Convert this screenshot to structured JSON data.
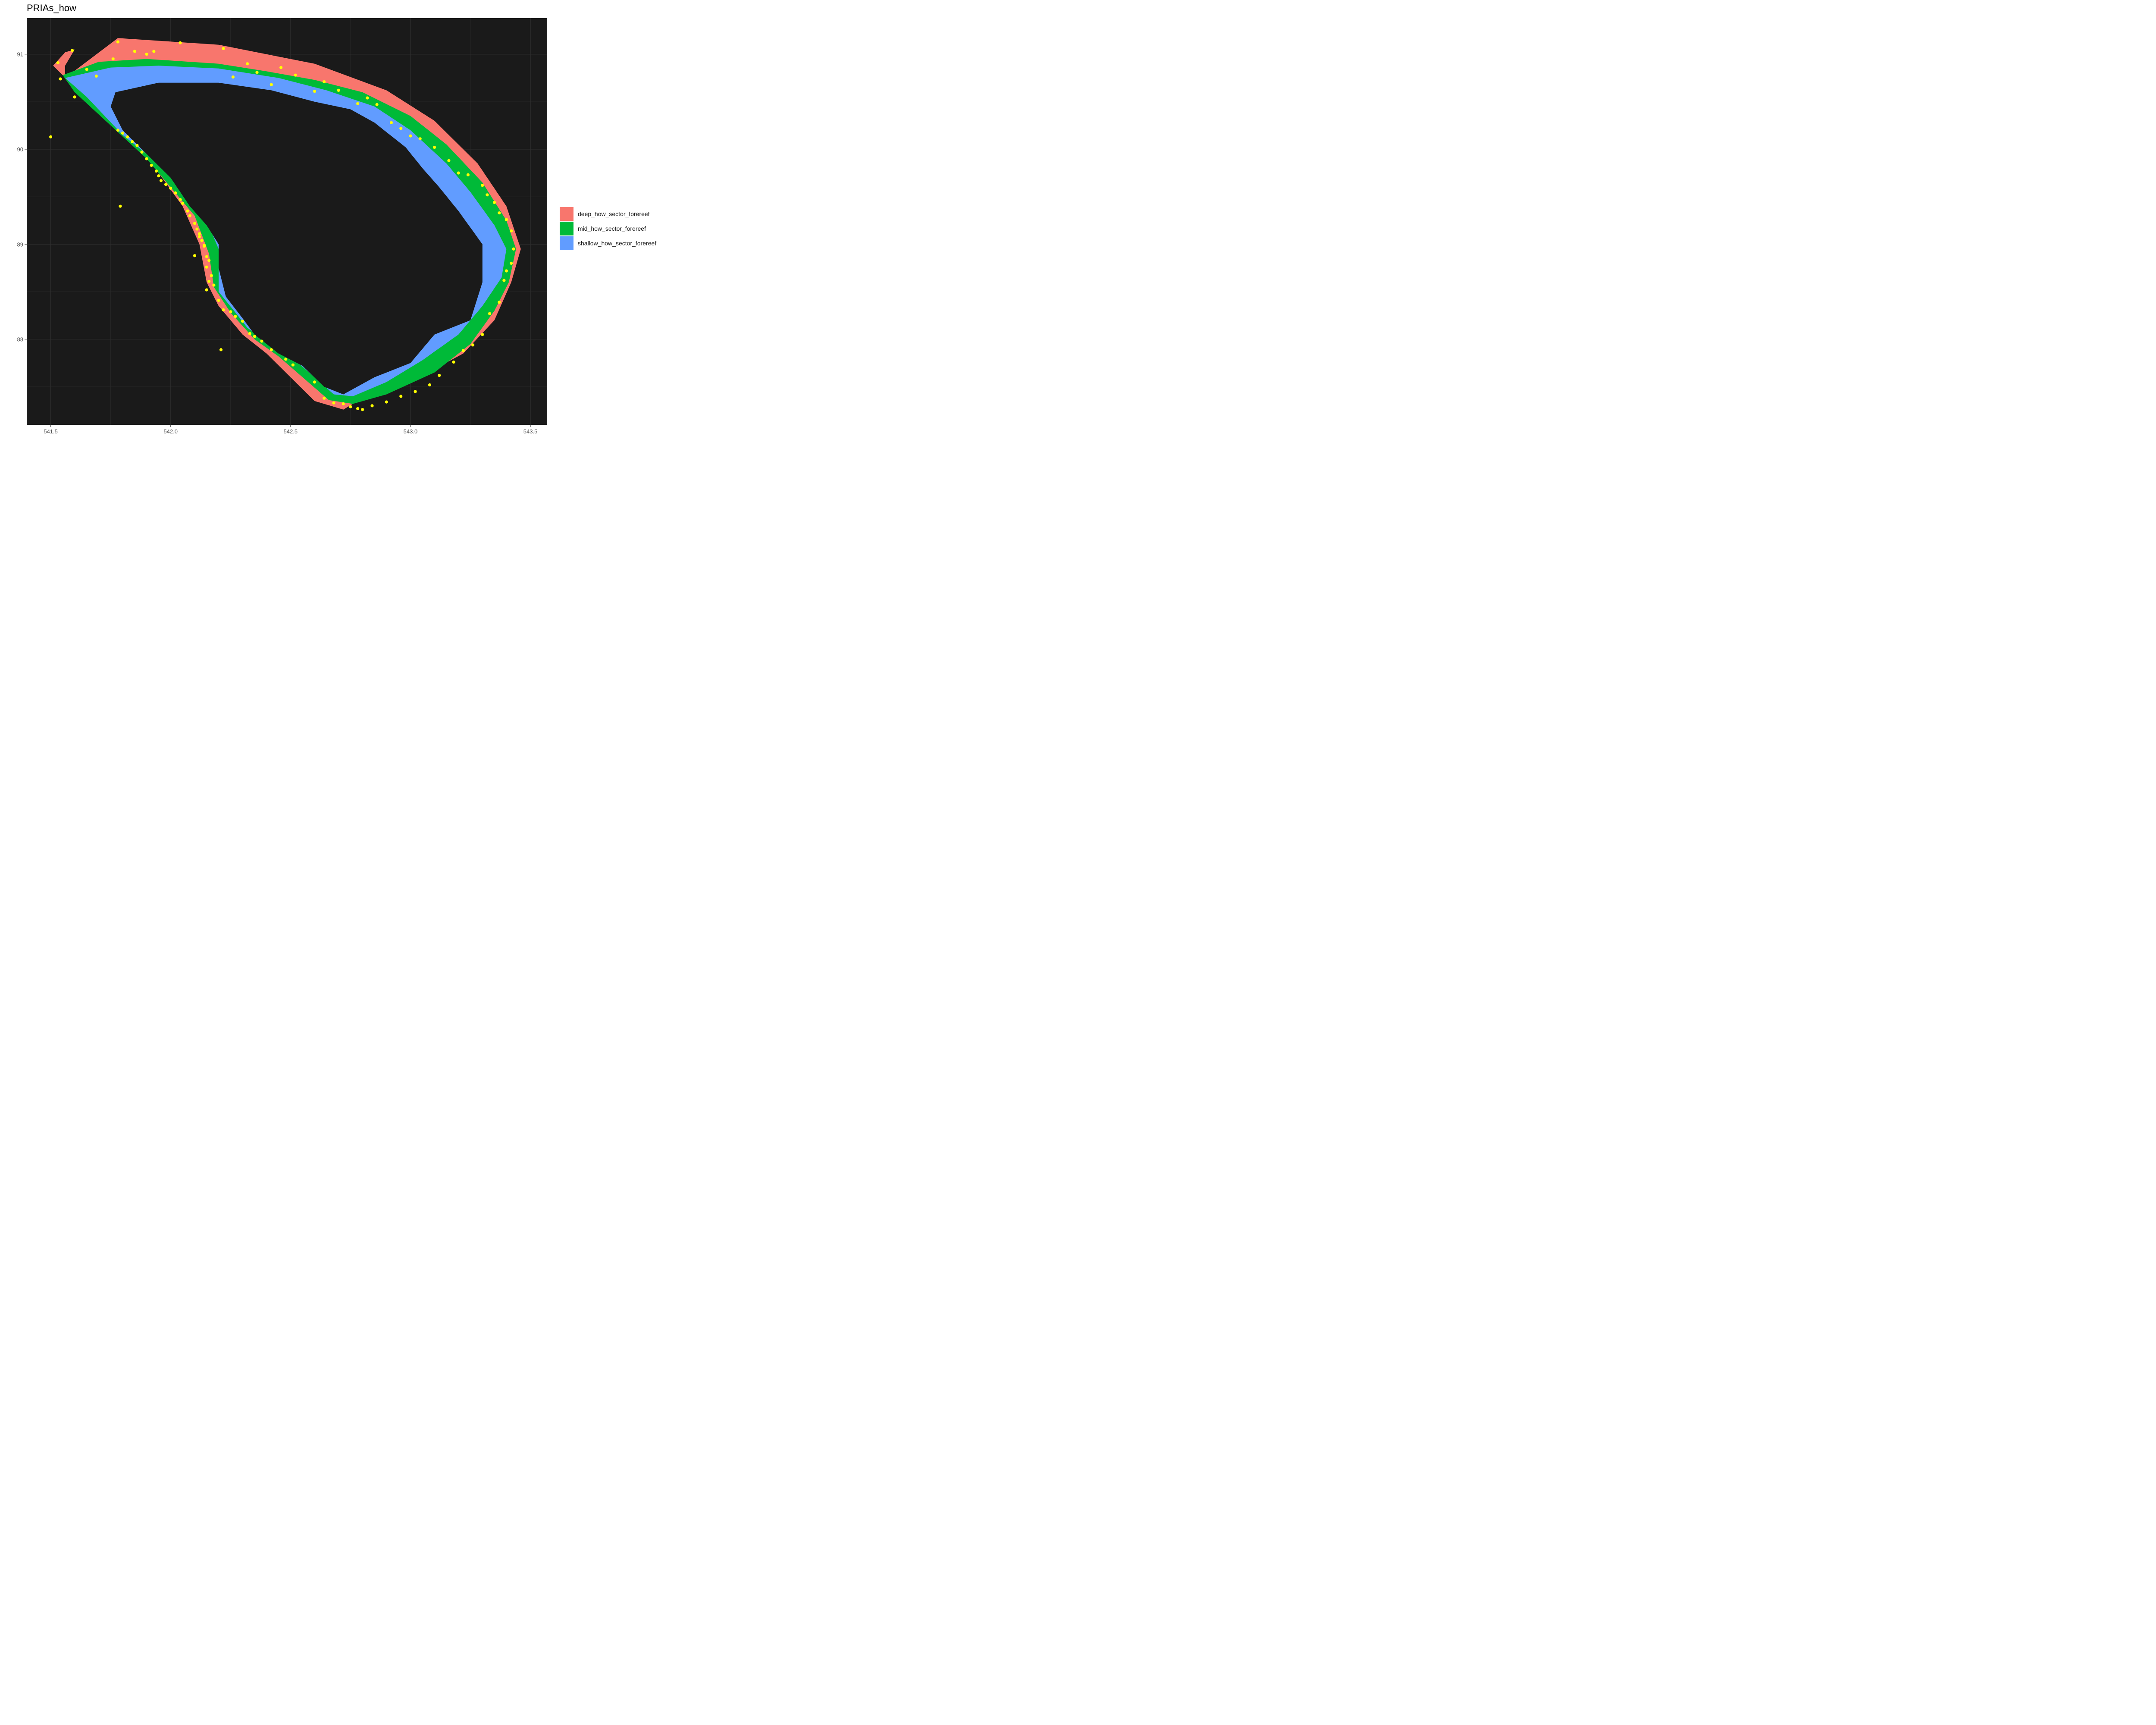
{
  "title": "PRIAs_how",
  "colors": {
    "panel_background": "#1a1a1a",
    "grid": "#2e2e2e",
    "deep": "#F8766D",
    "mid": "#00BA38",
    "shallow": "#619CFF",
    "points": "#FFFF00"
  },
  "legend": [
    {
      "label": "deep_how_sector_forereef",
      "color": "#F8766D"
    },
    {
      "label": "mid_how_sector_forereef",
      "color": "#00BA38"
    },
    {
      "label": "shallow_how_sector_forereef",
      "color": "#619CFF"
    }
  ],
  "chart_data": {
    "type": "scatter",
    "title": "PRIAs_how",
    "xlabel": "",
    "ylabel": "",
    "xlim": [
      541.4,
      543.57
    ],
    "ylim": [
      87.1,
      91.38
    ],
    "x_ticks": [
      541.5,
      542.0,
      542.5,
      543.0,
      543.5
    ],
    "x_tick_labels": [
      "541.5",
      "542.0",
      "542.5",
      "543.0",
      "543.5"
    ],
    "y_ticks": [
      88,
      89,
      90,
      91
    ],
    "y_tick_labels": [
      "88",
      "89",
      "90",
      "91"
    ],
    "grid": true,
    "legend_position": "right",
    "layers": [
      {
        "name": "deep_how_sector_forereef",
        "geometry": "raster",
        "color": "#F8766D"
      },
      {
        "name": "mid_how_sector_forereef",
        "geometry": "raster",
        "color": "#00BA38"
      },
      {
        "name": "shallow_how_sector_forereef",
        "geometry": "raster",
        "color": "#619CFF"
      }
    ],
    "points": [
      [
        541.5,
        90.13
      ],
      [
        541.53,
        90.91
      ],
      [
        541.54,
        90.74
      ],
      [
        541.59,
        91.04
      ],
      [
        541.6,
        90.55
      ],
      [
        541.65,
        90.84
      ],
      [
        541.69,
        90.77
      ],
      [
        541.76,
        90.95
      ],
      [
        541.78,
        91.13
      ],
      [
        541.79,
        89.4
      ],
      [
        541.85,
        91.03
      ],
      [
        541.9,
        91.0
      ],
      [
        541.93,
        91.03
      ],
      [
        542.04,
        91.12
      ],
      [
        542.22,
        91.06
      ],
      [
        541.78,
        90.2
      ],
      [
        541.8,
        90.17
      ],
      [
        541.82,
        90.13
      ],
      [
        541.84,
        90.08
      ],
      [
        541.86,
        90.04
      ],
      [
        541.88,
        89.97
      ],
      [
        541.9,
        89.9
      ],
      [
        541.92,
        89.83
      ],
      [
        541.94,
        89.77
      ],
      [
        541.95,
        89.72
      ],
      [
        541.96,
        89.67
      ],
      [
        541.98,
        89.63
      ],
      [
        542.0,
        89.59
      ],
      [
        542.02,
        89.54
      ],
      [
        542.04,
        89.47
      ],
      [
        542.05,
        89.43
      ],
      [
        542.07,
        89.35
      ],
      [
        542.08,
        89.3
      ],
      [
        542.1,
        89.22
      ],
      [
        542.11,
        89.16
      ],
      [
        542.12,
        89.08
      ],
      [
        542.13,
        89.04
      ],
      [
        542.14,
        88.98
      ],
      [
        542.15,
        88.87
      ],
      [
        542.16,
        88.83
      ],
      [
        542.15,
        88.76
      ],
      [
        542.17,
        88.67
      ],
      [
        542.16,
        88.61
      ],
      [
        542.18,
        88.57
      ],
      [
        542.15,
        88.52
      ],
      [
        542.2,
        88.41
      ],
      [
        542.22,
        88.31
      ],
      [
        542.25,
        88.29
      ],
      [
        542.27,
        88.24
      ],
      [
        542.3,
        88.19
      ],
      [
        542.33,
        88.06
      ],
      [
        542.35,
        88.03
      ],
      [
        542.38,
        87.98
      ],
      [
        542.42,
        87.89
      ],
      [
        542.48,
        87.79
      ],
      [
        542.51,
        87.73
      ],
      [
        542.6,
        87.55
      ],
      [
        542.64,
        87.38
      ],
      [
        542.68,
        87.33
      ],
      [
        542.72,
        87.32
      ],
      [
        542.75,
        87.29
      ],
      [
        542.78,
        87.27
      ],
      [
        542.8,
        87.26
      ],
      [
        542.84,
        87.3
      ],
      [
        542.9,
        87.34
      ],
      [
        542.96,
        87.4
      ],
      [
        543.02,
        87.45
      ],
      [
        543.08,
        87.52
      ],
      [
        543.12,
        87.62
      ],
      [
        543.18,
        87.76
      ],
      [
        543.22,
        87.88
      ],
      [
        543.26,
        87.94
      ],
      [
        543.3,
        88.05
      ],
      [
        543.33,
        88.27
      ],
      [
        543.37,
        88.39
      ],
      [
        543.39,
        88.62
      ],
      [
        543.4,
        88.72
      ],
      [
        543.42,
        88.8
      ],
      [
        543.43,
        88.95
      ],
      [
        543.42,
        89.14
      ],
      [
        543.4,
        89.26
      ],
      [
        543.37,
        89.33
      ],
      [
        543.35,
        89.44
      ],
      [
        543.32,
        89.52
      ],
      [
        543.3,
        89.62
      ],
      [
        543.24,
        89.73
      ],
      [
        543.2,
        89.75
      ],
      [
        543.16,
        89.88
      ],
      [
        543.1,
        90.02
      ],
      [
        543.04,
        90.11
      ],
      [
        543.0,
        90.14
      ],
      [
        542.96,
        90.22
      ],
      [
        542.92,
        90.28
      ],
      [
        542.86,
        90.47
      ],
      [
        542.82,
        90.54
      ],
      [
        542.78,
        90.48
      ],
      [
        542.7,
        90.62
      ],
      [
        542.64,
        90.71
      ],
      [
        542.6,
        90.61
      ],
      [
        542.52,
        90.78
      ],
      [
        542.46,
        90.86
      ],
      [
        542.42,
        90.68
      ],
      [
        542.36,
        90.81
      ],
      [
        542.32,
        90.9
      ],
      [
        542.26,
        90.76
      ],
      [
        542.1,
        88.88
      ],
      [
        542.21,
        87.89
      ],
      [
        542.12,
        89.11
      ],
      [
        542.14,
        88.99
      ]
    ]
  }
}
